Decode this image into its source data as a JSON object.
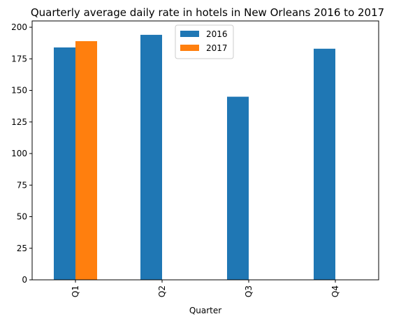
{
  "chart_data": {
    "type": "bar",
    "title": "Quarterly average daily rate in hotels in New Orleans 2016 to 2017",
    "xlabel": "Quarter",
    "ylabel": "",
    "categories": [
      "Q1",
      "Q2",
      "Q3",
      "Q4"
    ],
    "series": [
      {
        "name": "2016",
        "values": [
          184,
          194,
          145,
          183
        ],
        "color": "#1f77b4"
      },
      {
        "name": "2017",
        "values": [
          189,
          null,
          null,
          null
        ],
        "color": "#ff7f0e"
      }
    ],
    "ylim": [
      0,
      205
    ],
    "yticks": [
      0,
      25,
      50,
      75,
      100,
      125,
      150,
      175,
      200
    ],
    "grid": false,
    "legend_position": "top-center"
  }
}
